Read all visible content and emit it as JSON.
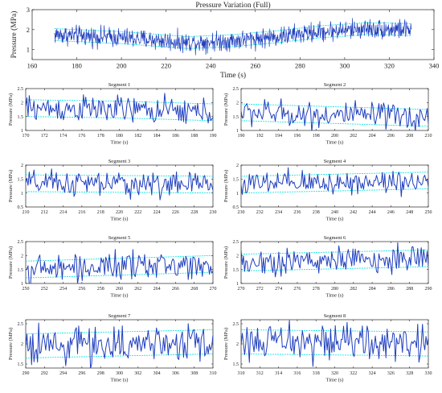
{
  "chart_data": [
    {
      "type": "line",
      "title": "Pressure Variation (Full)",
      "xlabel": "Time (s)",
      "ylabel": "Pressure (MPa)",
      "xlim": [
        160,
        340
      ],
      "ylim": [
        0.5,
        3
      ],
      "xticks": [
        160,
        180,
        200,
        220,
        240,
        260,
        280,
        300,
        320,
        340
      ],
      "yticks": [
        1,
        2,
        3
      ],
      "x_range": [
        170,
        330
      ],
      "trend": [
        [
          170,
          1.75
        ],
        [
          200,
          1.6
        ],
        [
          230,
          1.35
        ],
        [
          250,
          1.45
        ],
        [
          270,
          1.65
        ],
        [
          290,
          1.9
        ],
        [
          310,
          2.05
        ],
        [
          330,
          2.0
        ]
      ],
      "noise_amplitude": 0.3,
      "color": "#1f3fbf",
      "band_color": "#19e6e6",
      "band_width": 0.3
    },
    {
      "type": "line",
      "title": "Segment 1",
      "xlabel": "Time (s)",
      "ylabel": "Pressure (MPa)",
      "xlim": [
        170,
        190
      ],
      "ylim": [
        1,
        2.5
      ],
      "xticks": [
        170,
        172,
        174,
        176,
        178,
        180,
        182,
        184,
        186,
        188,
        190
      ],
      "yticks": [
        1,
        1.5,
        2,
        2.5
      ],
      "trend": [
        [
          170,
          1.8
        ],
        [
          180,
          1.75
        ],
        [
          190,
          1.65
        ]
      ],
      "noise_amplitude": 0.3,
      "color": "#1f3fbf",
      "band_color": "#19e6e6",
      "band_width": 0.3
    },
    {
      "type": "line",
      "title": "Segment 2",
      "xlabel": "Time (s)",
      "ylabel": "Pressure (MPa)",
      "xlim": [
        190,
        210
      ],
      "ylim": [
        1,
        2.5
      ],
      "xticks": [
        190,
        192,
        194,
        196,
        198,
        200,
        202,
        204,
        206,
        208,
        210
      ],
      "yticks": [
        1,
        1.5,
        2,
        2.5
      ],
      "trend": [
        [
          190,
          1.65
        ],
        [
          200,
          1.55
        ],
        [
          210,
          1.45
        ]
      ],
      "noise_amplitude": 0.3,
      "color": "#1f3fbf",
      "band_color": "#19e6e6",
      "band_width": 0.3
    },
    {
      "type": "line",
      "title": "Segment 3",
      "xlabel": "Time (s)",
      "ylabel": "Pressure (MPa)",
      "xlim": [
        210,
        230
      ],
      "ylim": [
        0.5,
        2
      ],
      "xticks": [
        210,
        212,
        214,
        216,
        218,
        220,
        222,
        224,
        226,
        228,
        230
      ],
      "yticks": [
        0.5,
        1,
        1.5,
        2
      ],
      "trend": [
        [
          210,
          1.35
        ],
        [
          230,
          1.3
        ]
      ],
      "noise_amplitude": 0.28,
      "color": "#1f3fbf",
      "band_color": "#19e6e6",
      "band_width": 0.3
    },
    {
      "type": "line",
      "title": "Segment 4",
      "xlabel": "Time (s)",
      "ylabel": "Pressure (MPa)",
      "xlim": [
        230,
        250
      ],
      "ylim": [
        0.5,
        2
      ],
      "xticks": [
        230,
        232,
        234,
        236,
        238,
        240,
        242,
        244,
        246,
        248,
        250
      ],
      "yticks": [
        0.5,
        1,
        1.5,
        2
      ],
      "trend": [
        [
          230,
          1.3
        ],
        [
          250,
          1.45
        ]
      ],
      "noise_amplitude": 0.28,
      "color": "#1f3fbf",
      "band_color": "#19e6e6",
      "band_width": 0.3
    },
    {
      "type": "line",
      "title": "Segment 5",
      "xlabel": "Time (s)",
      "ylabel": "Pressure (MPa)",
      "xlim": [
        250,
        270
      ],
      "ylim": [
        1,
        2.5
      ],
      "xticks": [
        250,
        252,
        254,
        256,
        258,
        260,
        262,
        264,
        266,
        268,
        270
      ],
      "yticks": [
        1,
        1.5,
        2,
        2.5
      ],
      "trend": [
        [
          250,
          1.5
        ],
        [
          270,
          1.7
        ]
      ],
      "noise_amplitude": 0.3,
      "color": "#1f3fbf",
      "band_color": "#19e6e6",
      "band_width": 0.3
    },
    {
      "type": "line",
      "title": "Segment 6",
      "xlabel": "Time (s)",
      "ylabel": "Pressure (MPa)",
      "xlim": [
        270,
        290
      ],
      "ylim": [
        1,
        2.5
      ],
      "xticks": [
        270,
        272,
        274,
        276,
        278,
        280,
        282,
        284,
        286,
        288,
        290
      ],
      "yticks": [
        1,
        1.5,
        2,
        2.5
      ],
      "trend": [
        [
          270,
          1.75
        ],
        [
          290,
          1.9
        ]
      ],
      "noise_amplitude": 0.3,
      "color": "#1f3fbf",
      "band_color": "#19e6e6",
      "band_width": 0.3
    },
    {
      "type": "line",
      "title": "Segment 7",
      "xlabel": "Time (s)",
      "ylabel": "Pressure (MPa)",
      "xlim": [
        290,
        310
      ],
      "ylim": [
        1.4,
        2.6
      ],
      "xticks": [
        290,
        292,
        294,
        296,
        298,
        300,
        302,
        304,
        306,
        308,
        310
      ],
      "yticks": [
        1.5,
        2,
        2.5
      ],
      "trend": [
        [
          290,
          1.95
        ],
        [
          310,
          2.05
        ]
      ],
      "noise_amplitude": 0.28,
      "color": "#1f3fbf",
      "band_color": "#19e6e6",
      "band_width": 0.3
    },
    {
      "type": "line",
      "title": "Segment 8",
      "xlabel": "Time (s)",
      "ylabel": "Pressure (MPa)",
      "xlim": [
        310,
        330
      ],
      "ylim": [
        1.4,
        2.6
      ],
      "xticks": [
        310,
        312,
        314,
        316,
        318,
        320,
        322,
        324,
        326,
        328,
        330
      ],
      "yticks": [
        1.5,
        2,
        2.5
      ],
      "trend": [
        [
          310,
          2.05
        ],
        [
          330,
          2.0
        ]
      ],
      "noise_amplitude": 0.28,
      "color": "#1f3fbf",
      "band_color": "#19e6e6",
      "band_width": 0.3
    }
  ]
}
